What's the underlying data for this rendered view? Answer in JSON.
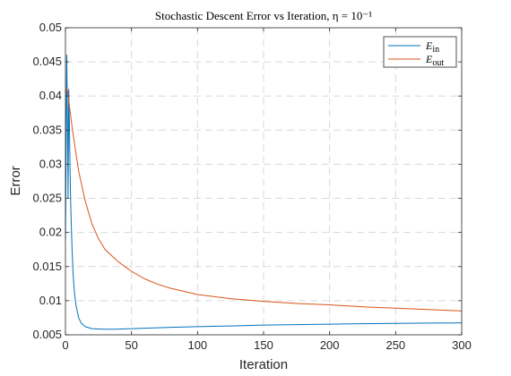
{
  "chart_data": {
    "type": "line",
    "title": "Stochastic Descent Error vs Iteration, η = 10⁻¹",
    "xlabel": "Iteration",
    "ylabel": "Error",
    "xlim": [
      0,
      300
    ],
    "ylim": [
      0.005,
      0.05
    ],
    "xticks": [
      0,
      50,
      100,
      150,
      200,
      250,
      300
    ],
    "yticks": [
      0.005,
      0.01,
      0.015,
      0.02,
      0.025,
      0.03,
      0.035,
      0.04,
      0.045,
      0.05
    ],
    "xtick_labels": [
      "0",
      "50",
      "100",
      "150",
      "200",
      "250",
      "300"
    ],
    "ytick_labels": [
      "0.005",
      "0.01",
      "0.015",
      "0.02",
      "0.025",
      "0.03",
      "0.035",
      "0.04",
      "0.045",
      "0.05"
    ],
    "grid": true,
    "legend_position": "top-right",
    "series": [
      {
        "name": "E_in",
        "legend_main": "E",
        "legend_sub": "in",
        "color": "#0072BD",
        "x": [
          0,
          0.5,
          1,
          1.5,
          2,
          2.5,
          3,
          3.5,
          4,
          5,
          6,
          7,
          8,
          10,
          12,
          15,
          20,
          25,
          30,
          35,
          40,
          50,
          60,
          80,
          100,
          125,
          150,
          175,
          200,
          225,
          250,
          275,
          300
        ],
        "y": [
          0.019,
          0.032,
          0.046,
          0.037,
          0.025,
          0.041,
          0.036,
          0.029,
          0.024,
          0.0175,
          0.0133,
          0.0108,
          0.0093,
          0.0075,
          0.0067,
          0.0062,
          0.0059,
          0.00585,
          0.00582,
          0.00582,
          0.00584,
          0.0059,
          0.00596,
          0.0061,
          0.0062,
          0.0063,
          0.00642,
          0.0065,
          0.00656,
          0.00663,
          0.00668,
          0.00672,
          0.00675
        ]
      },
      {
        "name": "E_out",
        "legend_main": "E",
        "legend_sub": "out",
        "color": "#D95319",
        "x": [
          0,
          1,
          2,
          3,
          5,
          8,
          10,
          15,
          20,
          25,
          30,
          40,
          50,
          60,
          70,
          80,
          100,
          125,
          150,
          175,
          200,
          225,
          250,
          275,
          300
        ],
        "y": [
          0.0405,
          0.041,
          0.0405,
          0.0385,
          0.0355,
          0.0315,
          0.029,
          0.0246,
          0.0213,
          0.0191,
          0.0175,
          0.0157,
          0.0143,
          0.0132,
          0.0124,
          0.0118,
          0.0109,
          0.0103,
          0.0099,
          0.0096,
          0.0094,
          0.0091,
          0.0089,
          0.0087,
          0.0085
        ]
      }
    ]
  }
}
